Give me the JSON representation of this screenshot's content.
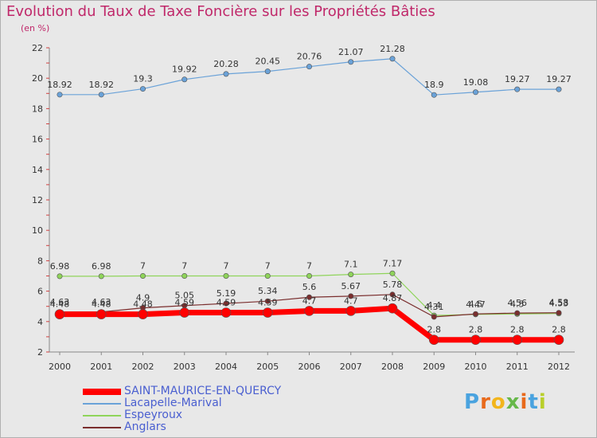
{
  "title": "Evolution du Taux de Taxe Foncière sur les Propriétés Bâties",
  "unit_label": "(en %)",
  "logo": {
    "letters": [
      "P",
      "r",
      "o",
      "x",
      "i",
      "t",
      "i"
    ],
    "colors": [
      "#4aa3df",
      "#e86a1c",
      "#f2b51c",
      "#67b84a",
      "#e86a1c",
      "#4aa3df",
      "#b9cf2a"
    ]
  },
  "chart_data": {
    "type": "line",
    "title": "Evolution du Taux de Taxe Foncière sur les Propriétés Bâties",
    "ylabel": "(en %)",
    "xlabel": "",
    "ylim": [
      2,
      22
    ],
    "yticks": [
      "2",
      "4",
      "6",
      "8",
      "10",
      "12",
      "14",
      "16",
      "18",
      "20",
      "22"
    ],
    "categories": [
      "2000",
      "2001",
      "2002",
      "2003",
      "2004",
      "2005",
      "2006",
      "2007",
      "2008",
      "2009",
      "2010",
      "2011",
      "2012"
    ],
    "series": [
      {
        "name": "Lacapelle-Marival",
        "color": "#6aa2d8",
        "values": [
          18.92,
          18.92,
          19.3,
          19.92,
          20.28,
          20.45,
          20.76,
          21.07,
          21.28,
          18.9,
          19.08,
          19.27,
          19.27
        ],
        "labels": [
          "18.92",
          "18.92",
          "19.3",
          "19.92",
          "20.28",
          "20.45",
          "20.76",
          "21.07",
          "21.28",
          "18.9",
          "19.08",
          "19.27",
          "19.27"
        ]
      },
      {
        "name": "Espeyroux",
        "color": "#8fd45a",
        "values": [
          6.98,
          6.98,
          7,
          7,
          7,
          7,
          7,
          7.1,
          7.17,
          4.4,
          4.47,
          4.5,
          4.53
        ],
        "labels": [
          "6.98",
          "6.98",
          "7",
          "7",
          "7",
          "7",
          "7",
          "7.1",
          "7.17",
          "4.4",
          "4.47",
          "4.5",
          "4.53"
        ]
      },
      {
        "name": "Anglars",
        "color": "#7a2e2e",
        "values": [
          4.63,
          4.63,
          4.9,
          5.05,
          5.19,
          5.34,
          5.6,
          5.67,
          5.78,
          4.31,
          4.5,
          4.56,
          4.58
        ],
        "labels": [
          "4.63",
          "4.63",
          "4.9",
          "5.05",
          "5.19",
          "5.34",
          "5.6",
          "5.67",
          "5.78",
          "4.31",
          "4.5",
          "4.56",
          "4.58"
        ]
      },
      {
        "name": "SAINT-MAURICE-EN-QUERCY",
        "color": "#ff0000",
        "values": [
          4.48,
          4.48,
          4.48,
          4.59,
          4.59,
          4.59,
          4.7,
          4.7,
          4.87,
          2.8,
          2.8,
          2.8,
          2.8
        ],
        "labels": [
          "4.48",
          "4.48",
          "4.48",
          "4.59",
          "4.59",
          "4.59",
          "4.7",
          "4.7",
          "4.87",
          "2.8",
          "2.8",
          "2.8",
          "2.8"
        ]
      }
    ],
    "legend": [
      {
        "name": "SAINT-MAURICE-EN-QUERCY",
        "color": "#ff0000"
      },
      {
        "name": "Lacapelle-Marival",
        "color": "#6aa2d8"
      },
      {
        "name": "Espeyroux",
        "color": "#8fd45a"
      },
      {
        "name": "Anglars",
        "color": "#7a2e2e"
      }
    ],
    "grid": false
  }
}
